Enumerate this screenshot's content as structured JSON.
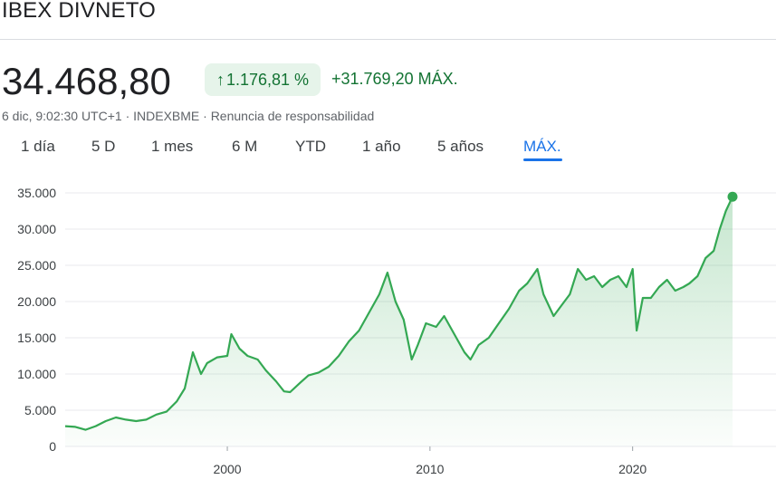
{
  "header": {
    "title": "IBEX DIVNETO",
    "price": "34.468,80",
    "change_pct": "1.176,81 %",
    "change_arrow": "↑",
    "change_abs": "+31.769,20 MÁX.",
    "meta": "6 dic, 9:02:30 UTC+1 · INDEXBME · Renuncia de responsabilidad"
  },
  "tabs": [
    {
      "label": "1 día"
    },
    {
      "label": "5 D"
    },
    {
      "label": "1 mes"
    },
    {
      "label": "6 M"
    },
    {
      "label": "YTD"
    },
    {
      "label": "1 año"
    },
    {
      "label": "5 años"
    },
    {
      "label": "MÁX."
    }
  ],
  "active_tab": "MÁX.",
  "colors": {
    "line": "#34a853",
    "positive_text": "#137333",
    "positive_bg": "#e6f4ea",
    "accent": "#1a73e8",
    "grid": "#e8eaed"
  },
  "chart_data": {
    "type": "area",
    "title": "",
    "xlabel": "",
    "ylabel": "",
    "ylim": [
      0,
      35000
    ],
    "yticks": [
      0,
      5000,
      10000,
      15000,
      20000,
      25000,
      30000,
      35000
    ],
    "ytick_labels": [
      "0",
      "5.000",
      "10.000",
      "15.000",
      "20.000",
      "25.000",
      "30.000",
      "35.000"
    ],
    "xlim": [
      1992.0,
      2024.93
    ],
    "xticks": [
      2000,
      2010,
      2020
    ],
    "xtick_labels": [
      "2000",
      "2010",
      "2020"
    ],
    "grid": true,
    "legend": "none",
    "series": [
      {
        "x": [
          1992.0,
          1992.5,
          1993.0,
          1993.5,
          1994.0,
          1994.5,
          1995.0,
          1995.5,
          1996.0,
          1996.5,
          1997.0,
          1997.5,
          1997.9,
          1998.3,
          1998.7,
          1999.0,
          1999.5,
          2000.0,
          2000.2,
          2000.6,
          2001.0,
          2001.5,
          2001.9,
          2002.4,
          2002.8,
          2003.1,
          2003.6,
          2004.0,
          2004.5,
          2005.0,
          2005.5,
          2006.0,
          2006.5,
          2007.0,
          2007.5,
          2007.9,
          2008.3,
          2008.7,
          2009.1,
          2009.4,
          2009.8,
          2010.3,
          2010.7,
          2011.2,
          2011.7,
          2012.0,
          2012.4,
          2012.9,
          2013.4,
          2013.9,
          2014.4,
          2014.8,
          2015.3,
          2015.6,
          2016.1,
          2016.5,
          2016.9,
          2017.3,
          2017.7,
          2018.1,
          2018.5,
          2018.9,
          2019.3,
          2019.7,
          2020.0,
          2020.2,
          2020.5,
          2020.9,
          2021.3,
          2021.7,
          2022.1,
          2022.5,
          2022.8,
          2023.2,
          2023.6,
          2024.0,
          2024.3,
          2024.6,
          2024.93
        ],
        "values": [
          2800,
          2700,
          2300,
          2800,
          3500,
          4000,
          3700,
          3500,
          3700,
          4400,
          4800,
          6200,
          8000,
          13000,
          10000,
          11500,
          12300,
          12500,
          15500,
          13500,
          12500,
          12000,
          10500,
          9000,
          7600,
          7500,
          8800,
          9800,
          10200,
          11000,
          12500,
          14500,
          16000,
          18500,
          21000,
          24000,
          20000,
          17500,
          12000,
          14000,
          17000,
          16500,
          18000,
          15500,
          13000,
          12000,
          14000,
          15000,
          17000,
          19000,
          21500,
          22500,
          24500,
          21000,
          18000,
          19500,
          21000,
          24500,
          23000,
          23500,
          22000,
          23000,
          23500,
          22000,
          24500,
          16000,
          20500,
          20500,
          22000,
          23000,
          21500,
          22000,
          22500,
          23500,
          26000,
          27000,
          30000,
          32500,
          34469
        ]
      }
    ]
  }
}
